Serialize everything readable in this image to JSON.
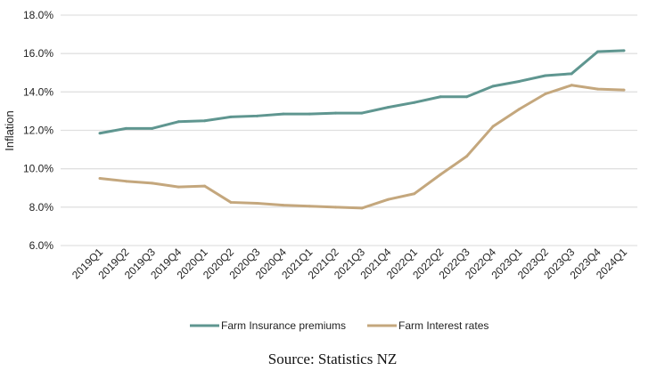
{
  "chart_data": {
    "type": "line",
    "title": "",
    "xlabel": "",
    "ylabel": "Inflation",
    "ylim": [
      6,
      18
    ],
    "yticks": [
      "6.0%",
      "8.0%",
      "10.0%",
      "12.0%",
      "14.0%",
      "16.0%",
      "18.0%"
    ],
    "grid": true,
    "legend_placement": "bottom",
    "categories": [
      "2019Q1",
      "2019Q2",
      "2019Q3",
      "2019Q4",
      "2020Q1",
      "2020Q2",
      "2020Q3",
      "2020Q4",
      "2021Q1",
      "2021Q2",
      "2021Q3",
      "2021Q4",
      "2022Q1",
      "2022Q2",
      "2022Q3",
      "2022Q4",
      "2023Q1",
      "2023Q2",
      "2023Q3",
      "2023Q4",
      "2024Q1"
    ],
    "series": [
      {
        "name": "Farm Insurance premiums",
        "color": "#5f9690",
        "values": [
          11.85,
          12.1,
          12.1,
          12.45,
          12.5,
          12.7,
          12.75,
          12.85,
          12.85,
          12.9,
          12.9,
          13.2,
          13.45,
          13.75,
          13.75,
          14.3,
          14.55,
          14.85,
          14.95,
          16.1,
          16.15
        ]
      },
      {
        "name": "Farm Interest rates",
        "color": "#c4a77d",
        "values": [
          9.5,
          9.35,
          9.25,
          9.05,
          9.1,
          8.25,
          8.2,
          8.1,
          8.05,
          8.0,
          7.95,
          8.4,
          8.7,
          9.7,
          10.65,
          12.2,
          13.1,
          13.9,
          14.35,
          14.15,
          14.1
        ]
      }
    ]
  },
  "source": "Source: Statistics NZ"
}
